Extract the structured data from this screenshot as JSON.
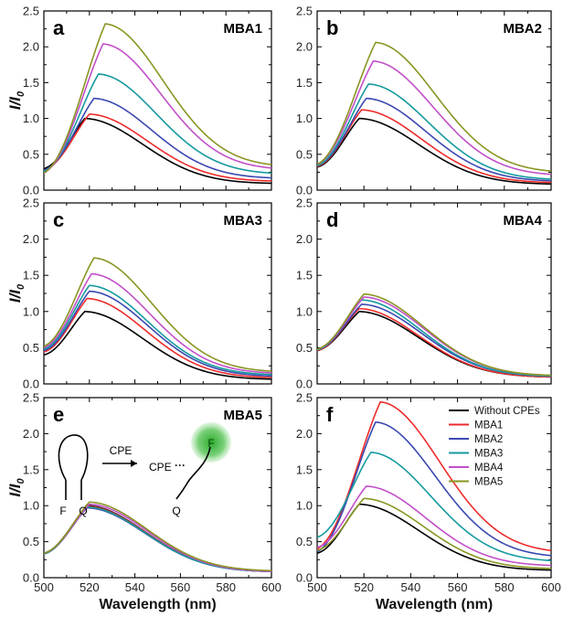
{
  "colors": {
    "Without CPEs": "#000000",
    "MBA1": "#ee2b2b",
    "MBA2": "#3a48b0",
    "MBA3": "#159a9e",
    "MBA4": "#c24fc8",
    "MBA5": "#8a9522"
  },
  "shared": {
    "xlabel": "Wavelength (nm)",
    "ylabel": "I/I",
    "ylabel_sub": "0",
    "xlim": [
      500,
      600
    ],
    "ylim": [
      0.0,
      2.5
    ],
    "xticks": [
      "500",
      "520",
      "540",
      "560",
      "580",
      "600"
    ],
    "yticks": [
      "0.0",
      "0.5",
      "1.0",
      "1.5",
      "2.0",
      "2.5"
    ]
  },
  "chart_data": [
    {
      "type": "line",
      "panel": "a",
      "title": "MBA1",
      "series": [
        {
          "label_ref": "Without CPEs",
          "peak_x": 518,
          "peak_y": 1.0,
          "start_y": 0.3,
          "end_y": 0.09
        },
        {
          "label_ref": "MBA1",
          "peak_x": 520,
          "peak_y": 1.06,
          "start_y": 0.28,
          "end_y": 0.12
        },
        {
          "label_ref": "MBA2",
          "peak_x": 522,
          "peak_y": 1.28,
          "start_y": 0.28,
          "end_y": 0.16
        },
        {
          "label_ref": "MBA3",
          "peak_x": 524,
          "peak_y": 1.62,
          "start_y": 0.26,
          "end_y": 0.22
        },
        {
          "label_ref": "MBA4",
          "peak_x": 526,
          "peak_y": 2.04,
          "start_y": 0.24,
          "end_y": 0.28
        },
        {
          "label_ref": "MBA5",
          "peak_x": 527,
          "peak_y": 2.32,
          "start_y": 0.24,
          "end_y": 0.32
        }
      ]
    },
    {
      "type": "line",
      "panel": "b",
      "title": "MBA2",
      "series": [
        {
          "label_ref": "Without CPEs",
          "peak_x": 518,
          "peak_y": 1.0,
          "start_y": 0.32,
          "end_y": 0.08
        },
        {
          "label_ref": "MBA1",
          "peak_x": 519,
          "peak_y": 1.12,
          "start_y": 0.33,
          "end_y": 0.1
        },
        {
          "label_ref": "MBA2",
          "peak_x": 521,
          "peak_y": 1.28,
          "start_y": 0.34,
          "end_y": 0.12
        },
        {
          "label_ref": "MBA3",
          "peak_x": 522,
          "peak_y": 1.48,
          "start_y": 0.34,
          "end_y": 0.14
        },
        {
          "label_ref": "MBA4",
          "peak_x": 524,
          "peak_y": 1.8,
          "start_y": 0.36,
          "end_y": 0.2
        },
        {
          "label_ref": "MBA5",
          "peak_x": 525,
          "peak_y": 2.06,
          "start_y": 0.36,
          "end_y": 0.24
        }
      ]
    },
    {
      "type": "line",
      "panel": "c",
      "title": "MBA3",
      "series": [
        {
          "label_ref": "Without CPEs",
          "peak_x": 518,
          "peak_y": 1.0,
          "start_y": 0.4,
          "end_y": 0.06
        },
        {
          "label_ref": "MBA1",
          "peak_x": 519,
          "peak_y": 1.18,
          "start_y": 0.44,
          "end_y": 0.08
        },
        {
          "label_ref": "MBA2",
          "peak_x": 520,
          "peak_y": 1.28,
          "start_y": 0.46,
          "end_y": 0.1
        },
        {
          "label_ref": "MBA3",
          "peak_x": 520,
          "peak_y": 1.36,
          "start_y": 0.48,
          "end_y": 0.12
        },
        {
          "label_ref": "MBA4",
          "peak_x": 521,
          "peak_y": 1.52,
          "start_y": 0.5,
          "end_y": 0.14
        },
        {
          "label_ref": "MBA5",
          "peak_x": 522,
          "peak_y": 1.74,
          "start_y": 0.52,
          "end_y": 0.16
        }
      ]
    },
    {
      "type": "line",
      "panel": "d",
      "title": "MBA4",
      "series": [
        {
          "label_ref": "Without CPEs",
          "peak_x": 518,
          "peak_y": 1.0,
          "start_y": 0.46,
          "end_y": 0.09
        },
        {
          "label_ref": "MBA1",
          "peak_x": 518,
          "peak_y": 1.04,
          "start_y": 0.46,
          "end_y": 0.09
        },
        {
          "label_ref": "MBA2",
          "peak_x": 519,
          "peak_y": 1.1,
          "start_y": 0.47,
          "end_y": 0.1
        },
        {
          "label_ref": "MBA3",
          "peak_x": 519,
          "peak_y": 1.16,
          "start_y": 0.47,
          "end_y": 0.1
        },
        {
          "label_ref": "MBA4",
          "peak_x": 520,
          "peak_y": 1.2,
          "start_y": 0.48,
          "end_y": 0.11
        },
        {
          "label_ref": "MBA5",
          "peak_x": 520,
          "peak_y": 1.24,
          "start_y": 0.48,
          "end_y": 0.11
        }
      ]
    },
    {
      "type": "line",
      "panel": "e",
      "title": "MBA5",
      "annotation": {
        "cpe_1": "CPE",
        "cpe_2": "CPE",
        "f1": "F",
        "q1": "Q",
        "f2": "F",
        "q2": "Q"
      },
      "series": [
        {
          "label_ref": "Without CPEs",
          "peak_x": 519,
          "peak_y": 1.0,
          "start_y": 0.34,
          "end_y": 0.08
        },
        {
          "label_ref": "MBA1",
          "peak_x": 519,
          "peak_y": 0.99,
          "start_y": 0.33,
          "end_y": 0.08
        },
        {
          "label_ref": "MBA2",
          "peak_x": 519,
          "peak_y": 0.97,
          "start_y": 0.33,
          "end_y": 0.08
        },
        {
          "label_ref": "MBA3",
          "peak_x": 519,
          "peak_y": 0.98,
          "start_y": 0.33,
          "end_y": 0.08
        },
        {
          "label_ref": "MBA4",
          "peak_x": 520,
          "peak_y": 1.02,
          "start_y": 0.34,
          "end_y": 0.08
        },
        {
          "label_ref": "MBA5",
          "peak_x": 520,
          "peak_y": 1.05,
          "start_y": 0.34,
          "end_y": 0.09
        }
      ]
    },
    {
      "type": "line",
      "panel": "f",
      "title": "",
      "legend": [
        "Without CPEs",
        "MBA1",
        "MBA2",
        "MBA3",
        "MBA4",
        "MBA5"
      ],
      "legend_position": "top-right",
      "series": [
        {
          "label_ref": "Without CPEs",
          "peak_x": 518,
          "peak_y": 1.02,
          "start_y": 0.34,
          "end_y": 0.1
        },
        {
          "label_ref": "MBA1",
          "peak_x": 527,
          "peak_y": 2.44,
          "start_y": 0.4,
          "end_y": 0.34
        },
        {
          "label_ref": "MBA2",
          "peak_x": 525,
          "peak_y": 2.16,
          "start_y": 0.36,
          "end_y": 0.28
        },
        {
          "label_ref": "MBA3",
          "peak_x": 523,
          "peak_y": 1.74,
          "start_y": 0.56,
          "end_y": 0.22
        },
        {
          "label_ref": "MBA4",
          "peak_x": 521,
          "peak_y": 1.27,
          "start_y": 0.42,
          "end_y": 0.16
        },
        {
          "label_ref": "MBA5",
          "peak_x": 520,
          "peak_y": 1.1,
          "start_y": 0.38,
          "end_y": 0.12
        }
      ]
    }
  ]
}
